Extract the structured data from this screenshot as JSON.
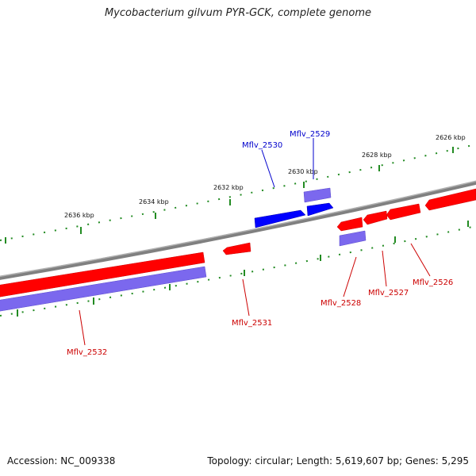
{
  "title": "Mycobacterium gilvum PYR-GCK, complete genome",
  "footer": {
    "accession": "Accession: NC_009338",
    "summary": "Topology: circular; Length: 5,619,607 bp; Genes: 5,295"
  },
  "colors": {
    "backbone": "#808080",
    "forward_cds": "#ff0000",
    "reverse_cds": "#0000ff",
    "gene_other": "#6a5acd",
    "tick": "#228b22",
    "label_forward": "#cc0000",
    "label_reverse": "#0000cc"
  },
  "kbp_labels": [
    "2626 kbp",
    "2628 kbp",
    "2630 kbp",
    "2632 kbp",
    "2634 kbp",
    "2636 kbp"
  ],
  "genes": [
    {
      "id": "Mflv_2529",
      "strand": "reverse"
    },
    {
      "id": "Mflv_2530",
      "strand": "reverse"
    },
    {
      "id": "Mflv_2531",
      "strand": "forward"
    },
    {
      "id": "Mflv_2532",
      "strand": "forward"
    },
    {
      "id": "Mflv_2528",
      "strand": "forward"
    },
    {
      "id": "Mflv_2527",
      "strand": "forward"
    },
    {
      "id": "Mflv_2526",
      "strand": "forward"
    }
  ]
}
